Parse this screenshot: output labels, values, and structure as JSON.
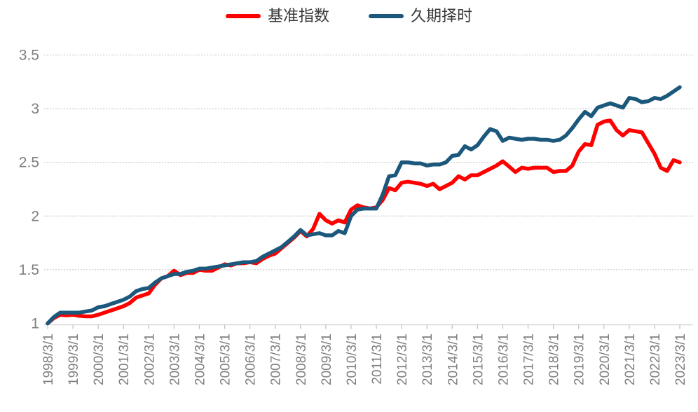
{
  "page": {
    "background_color": "#FFFFFF"
  },
  "legend": {
    "items": [
      {
        "label": "基准指数",
        "color": "#FF0000"
      },
      {
        "label": "久期择时",
        "color": "#1B587C"
      }
    ],
    "position": "top-center"
  },
  "chart_data": {
    "type": "line",
    "title": "",
    "xlabel": "",
    "ylabel": "",
    "ylim": [
      1,
      3.5
    ],
    "y_ticks": [
      1,
      1.5,
      2,
      2.5,
      3,
      3.5
    ],
    "y_tick_labels": [
      "1",
      "1.5",
      "2",
      "2.5",
      "3",
      "3.5"
    ],
    "grid": {
      "horizontal": true,
      "style": "dashed",
      "color": "#BFBFBF",
      "skip_at_value": 1
    },
    "axis_style": {
      "axis_line_color": "#D9D9D9",
      "tick_color": "#BFBFBF",
      "label_color": "#7F7F7F"
    },
    "legend_position": "top-center",
    "x_tick_labels": [
      "1998/3/1",
      "1999/3/1",
      "2000/3/1",
      "2001/3/1",
      "2002/3/1",
      "2003/3/1",
      "2004/3/1",
      "2005/3/1",
      "2006/3/1",
      "2007/3/1",
      "2008/3/1",
      "2009/3/1",
      "2010/3/1",
      "2011/3/1",
      "2012/3/1",
      "2013/3/1",
      "2014/3/1",
      "2015/3/1",
      "2016/3/1",
      "2017/3/1",
      "2018/3/1",
      "2019/3/1",
      "2020/3/1",
      "2021/3/1",
      "2022/3/1",
      "2023/3/1"
    ],
    "x_label_rotation_deg": -90,
    "sampling": "quarterly points from 1998/3 to 2023/3, 101 points per series",
    "series": [
      {
        "name": "基准指数",
        "color": "#FF0000",
        "values": [
          1.0,
          1.05,
          1.08,
          1.075,
          1.08,
          1.07,
          1.065,
          1.065,
          1.08,
          1.1,
          1.12,
          1.14,
          1.16,
          1.19,
          1.24,
          1.26,
          1.28,
          1.36,
          1.42,
          1.44,
          1.49,
          1.45,
          1.47,
          1.47,
          1.5,
          1.49,
          1.49,
          1.52,
          1.55,
          1.54,
          1.56,
          1.56,
          1.57,
          1.56,
          1.6,
          1.63,
          1.65,
          1.7,
          1.75,
          1.8,
          1.86,
          1.81,
          1.88,
          2.02,
          1.96,
          1.93,
          1.96,
          1.94,
          2.06,
          2.1,
          2.08,
          2.07,
          2.08,
          2.15,
          2.26,
          2.24,
          2.31,
          2.32,
          2.31,
          2.3,
          2.28,
          2.3,
          2.25,
          2.28,
          2.31,
          2.37,
          2.34,
          2.38,
          2.38,
          2.41,
          2.44,
          2.47,
          2.51,
          2.46,
          2.41,
          2.45,
          2.44,
          2.45,
          2.45,
          2.45,
          2.41,
          2.42,
          2.42,
          2.47,
          2.6,
          2.67,
          2.66,
          2.85,
          2.88,
          2.89,
          2.8,
          2.75,
          2.8,
          2.79,
          2.78,
          2.68,
          2.58,
          2.45,
          2.42,
          2.52,
          2.5
        ]
      },
      {
        "name": "久期择时",
        "color": "#1B587C",
        "values": [
          1.0,
          1.06,
          1.1,
          1.1,
          1.1,
          1.1,
          1.11,
          1.12,
          1.15,
          1.16,
          1.18,
          1.2,
          1.22,
          1.25,
          1.3,
          1.32,
          1.33,
          1.38,
          1.42,
          1.44,
          1.46,
          1.46,
          1.48,
          1.49,
          1.51,
          1.51,
          1.52,
          1.53,
          1.54,
          1.55,
          1.56,
          1.57,
          1.57,
          1.58,
          1.62,
          1.65,
          1.68,
          1.71,
          1.76,
          1.81,
          1.87,
          1.82,
          1.83,
          1.84,
          1.82,
          1.82,
          1.86,
          1.84,
          2.0,
          2.06,
          2.07,
          2.07,
          2.07,
          2.2,
          2.37,
          2.38,
          2.5,
          2.5,
          2.49,
          2.49,
          2.47,
          2.48,
          2.48,
          2.5,
          2.56,
          2.57,
          2.65,
          2.62,
          2.66,
          2.74,
          2.81,
          2.79,
          2.7,
          2.73,
          2.72,
          2.71,
          2.72,
          2.72,
          2.71,
          2.71,
          2.7,
          2.71,
          2.75,
          2.82,
          2.9,
          2.97,
          2.93,
          3.01,
          3.03,
          3.05,
          3.03,
          3.01,
          3.1,
          3.09,
          3.06,
          3.07,
          3.1,
          3.09,
          3.12,
          3.16,
          3.2
        ]
      }
    ]
  }
}
